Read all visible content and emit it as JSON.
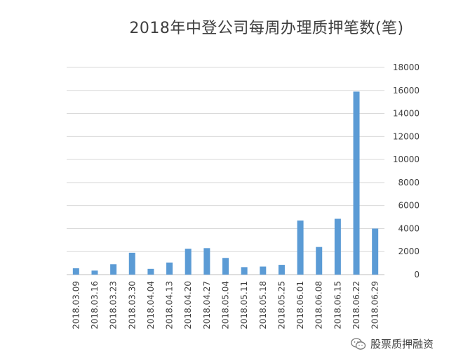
{
  "chart_data": {
    "type": "bar",
    "title": "2018年中登公司每周办理质押笔数(笔)",
    "categories": [
      "2018.03.09",
      "2018.03.16",
      "2018.03.23",
      "2018.03.30",
      "2018.04.04",
      "2018.04.13",
      "2018.04.20",
      "2018.04.27",
      "2018.05.04",
      "2018.05.11",
      "2018.05.18",
      "2018.05.25",
      "2018.06.01",
      "2018.06.08",
      "2018.06.15",
      "2018.06.22",
      "2018.06.29"
    ],
    "values": [
      550,
      350,
      900,
      1900,
      500,
      1050,
      2250,
      2300,
      1450,
      650,
      700,
      850,
      4700,
      2400,
      4850,
      15900,
      4000
    ],
    "y_ticks": [
      "0",
      "2000",
      "4000",
      "6000",
      "8000",
      "10000",
      "12000",
      "14000",
      "16000",
      "18000"
    ],
    "ylim": [
      0,
      18000
    ],
    "y_axis_side": "right",
    "grid": true,
    "bar_color": "#5b9bd5"
  },
  "watermark": {
    "text": "股票质押融资",
    "icon": "wechat-icon"
  }
}
